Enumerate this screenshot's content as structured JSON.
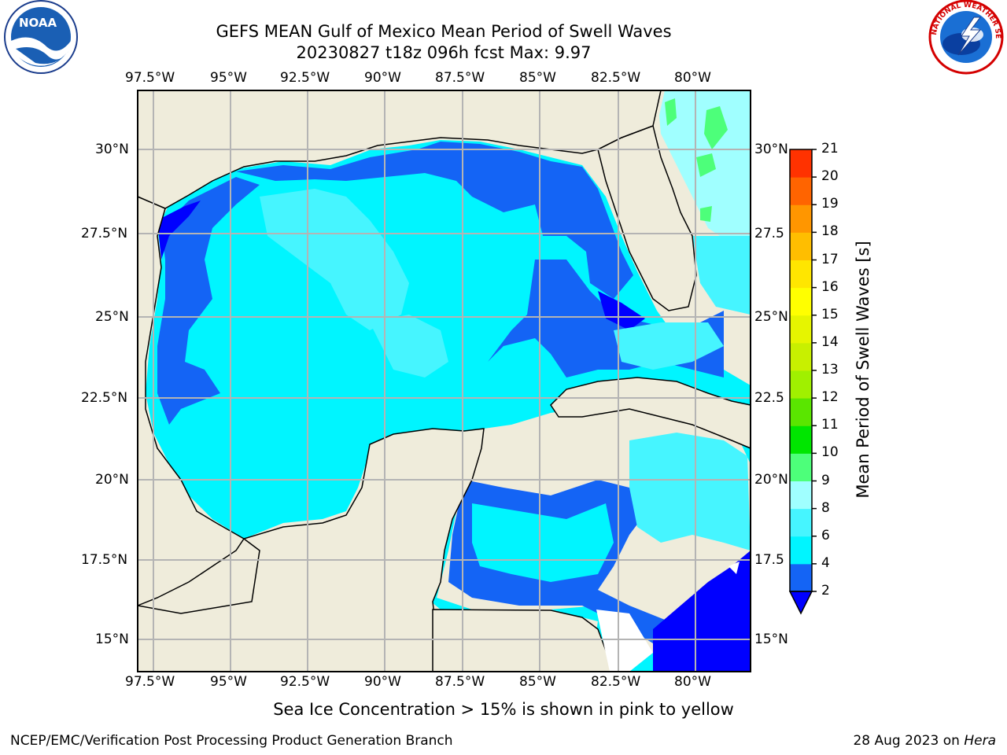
{
  "title_line1": "GEFS MEAN Gulf of Mexico Mean Period of Swell Waves",
  "title_line2": "20230827 t18z 096h fcst   Max: 9.97",
  "lon_labels": [
    "97.5°W",
    "95°W",
    "92.5°W",
    "90°W",
    "87.5°W",
    "85°W",
    "82.5°W",
    "80°W"
  ],
  "lat_labels": [
    "30°N",
    "27.5°N",
    "25°N",
    "22.5°N",
    "20°N",
    "17.5°N",
    "15°N"
  ],
  "lat_labels_right": [
    "30°N",
    "27.5",
    "25°N",
    "22.5",
    "20°N",
    "17.5",
    "15°N"
  ],
  "colorbar": {
    "label": "Mean Period of Swell Waves [s]",
    "ticks": [
      "2",
      "4",
      "6",
      "8",
      "9",
      "10",
      "11",
      "12",
      "13",
      "14",
      "15",
      "16",
      "17",
      "18",
      "19",
      "20",
      "21"
    ],
    "colors": [
      "#1464f5",
      "#00f5ff",
      "#46f5ff",
      "#a0ffff",
      "#4dff7a",
      "#00e600",
      "#5ae600",
      "#a0f000",
      "#c8f000",
      "#e6f500",
      "#ffff00",
      "#ffe600",
      "#ffbe00",
      "#ff9600",
      "#ff6400",
      "#ff3200"
    ],
    "under_color": "#0000ff"
  },
  "note": "Sea Ice Concentration > 15% is shown in pink to yellow",
  "footer_left": "NCEP/EMC/Verification Post Processing Product Generation Branch",
  "footer_date": "28 Aug 2023 on ",
  "footer_host": "Hera",
  "logo_left": "NOAA",
  "logo_right": "NATIONAL WEATHER SERVICE",
  "chart_data": {
    "type": "heatmap",
    "variable": "Mean Period of Swell Waves [s]",
    "max": 9.97,
    "lon_range": [
      -98.5,
      -78.5
    ],
    "lat_range": [
      14.0,
      32.0
    ],
    "lon_ticks": [
      -97.5,
      -95,
      -92.5,
      -90,
      -87.5,
      -85,
      -82.5,
      -80
    ],
    "lat_ticks": [
      30,
      27.5,
      25,
      22.5,
      20,
      17.5,
      15
    ],
    "levels": [
      2,
      4,
      6,
      8,
      9,
      10,
      11,
      12,
      13,
      14,
      15,
      16,
      17,
      18,
      19,
      20,
      21
    ],
    "grid": true
  }
}
